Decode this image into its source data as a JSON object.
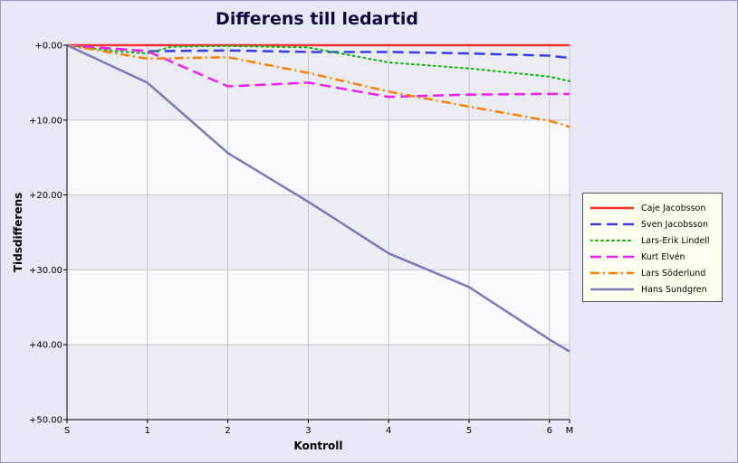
{
  "chart_data": {
    "type": "line",
    "title": "Differens till ledartid",
    "xlabel": "Kontroll",
    "ylabel": "Tidsdifferens",
    "x_categories": [
      "S",
      "1",
      "2",
      "3",
      "4",
      "5",
      "6",
      "M"
    ],
    "x_positions": [
      0,
      1,
      2,
      3,
      4,
      5,
      6,
      6.25
    ],
    "x_range": [
      0,
      6.25
    ],
    "y_ticks": [
      "+0.00",
      "+10.00",
      "+20.00",
      "+30.00",
      "+40.00",
      "+50.00"
    ],
    "y_tick_values": [
      0,
      10,
      20,
      30,
      40,
      50
    ],
    "ylim": [
      0,
      50
    ],
    "y_inverted": true,
    "grid": true,
    "legend_position": "right",
    "series": [
      {
        "name": "Caje Jacobsson",
        "color": "#ff3030",
        "dash": "solid",
        "x": [
          0,
          1,
          2,
          3,
          4,
          5,
          6,
          6.25
        ],
        "values": [
          0,
          0,
          0,
          0,
          0,
          0,
          0,
          0
        ]
      },
      {
        "name": "Sven Jacobsson",
        "color": "#3a3ae8",
        "dash": "dashed",
        "x": [
          0,
          1,
          2,
          3,
          4,
          5,
          6,
          6.25
        ],
        "values": [
          0,
          0.8,
          0.7,
          0.9,
          0.9,
          1.1,
          1.4,
          1.7
        ]
      },
      {
        "name": "Lars-Erik Lindell",
        "color": "#10b010",
        "dash": "dotted",
        "x": [
          0,
          0.6,
          1,
          1.3,
          2,
          3,
          4,
          5,
          6,
          6.25
        ],
        "values": [
          0,
          0.8,
          1.1,
          0.2,
          0.1,
          0.3,
          2.3,
          3.1,
          4.2,
          4.8
        ]
      },
      {
        "name": "Kurt Elvén",
        "color": "#f020f0",
        "dash": "dashed",
        "x": [
          0,
          1,
          2,
          3,
          4,
          5,
          6,
          6.25
        ],
        "values": [
          0,
          0.8,
          5.5,
          5.0,
          6.9,
          6.6,
          6.5,
          6.5
        ]
      },
      {
        "name": "Lars Söderlund",
        "color": "#ff8000",
        "dash": "dashdot",
        "x": [
          0,
          1,
          2,
          3,
          4,
          5,
          6,
          6.25
        ],
        "values": [
          0,
          1.8,
          1.6,
          3.7,
          6.2,
          8.2,
          10.1,
          10.9
        ]
      },
      {
        "name": "Hans Sundgren",
        "color": "#7a7ab8",
        "dash": "solid",
        "x": [
          0,
          1,
          2,
          3,
          4,
          5,
          6,
          6.25
        ],
        "values": [
          0,
          5.0,
          14.4,
          20.9,
          27.8,
          32.3,
          39.3,
          40.9
        ]
      }
    ]
  }
}
